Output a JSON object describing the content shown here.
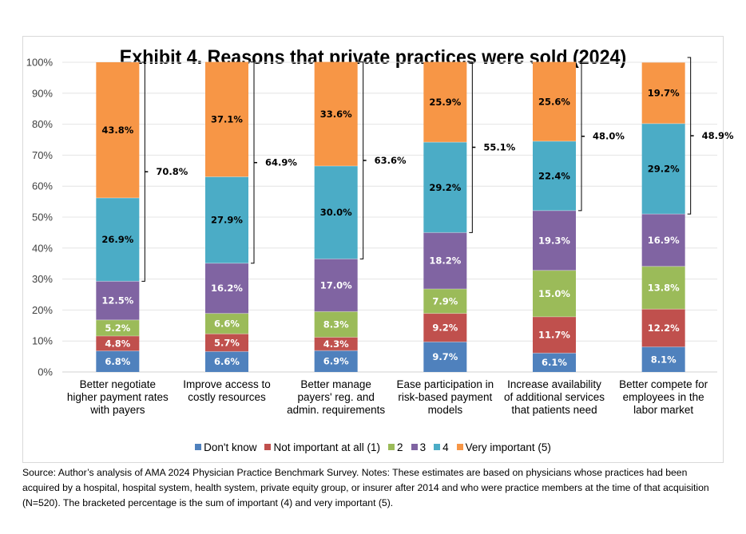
{
  "chart_data": {
    "type": "bar",
    "stacked": true,
    "title": "Exhibit 4. Reasons that private practices were sold (2024)",
    "xlabel": "",
    "ylabel": "",
    "ylim": [
      0,
      100
    ],
    "yticks": [
      "0%",
      "10%",
      "20%",
      "30%",
      "40%",
      "50%",
      "60%",
      "70%",
      "80%",
      "90%",
      "100%"
    ],
    "grid": true,
    "legend_position": "bottom",
    "categories": [
      [
        "Better negotiate",
        "higher payment rates",
        "with payers"
      ],
      [
        "Improve access to",
        "costly resources"
      ],
      [
        "Better manage",
        "payers' reg. and",
        "admin. requirements"
      ],
      [
        "Ease participation in",
        "risk-based payment",
        "models"
      ],
      [
        "Increase availability",
        "of additional services",
        "that patients need"
      ],
      [
        "Better compete for",
        "employees in the",
        "labor market"
      ]
    ],
    "series": [
      {
        "name": "Don't know",
        "color": "#4f81bd",
        "label_color": "#ffffff",
        "values": [
          6.8,
          6.6,
          6.9,
          9.7,
          6.1,
          8.1
        ]
      },
      {
        "name": "Not important at all (1)",
        "color": "#c0504d",
        "label_color": "#ffffff",
        "values": [
          4.8,
          5.7,
          4.3,
          9.2,
          11.7,
          12.2
        ]
      },
      {
        "name": "2",
        "color": "#9bbb59",
        "label_color": "#ffffff",
        "values": [
          5.2,
          6.6,
          8.3,
          7.9,
          15.0,
          13.8
        ]
      },
      {
        "name": "3",
        "color": "#8064a2",
        "label_color": "#ffffff",
        "values": [
          12.5,
          16.2,
          17.0,
          18.2,
          19.3,
          16.9
        ]
      },
      {
        "name": "4",
        "color": "#4bacc6",
        "label_color": "#000000",
        "values": [
          26.9,
          27.9,
          30.0,
          29.2,
          22.4,
          29.2
        ]
      },
      {
        "name": "Very important (5)",
        "color": "#f79646",
        "label_color": "#000000",
        "values": [
          43.8,
          37.1,
          33.6,
          25.9,
          25.6,
          19.7
        ]
      }
    ],
    "bracket_totals": [
      "70.8%",
      "64.9%",
      "63.6%",
      "55.1%",
      "48.0%",
      "48.9%"
    ],
    "bracket_note": "sum of important (4) and very important (5)"
  },
  "source_note": "Source: Author’s analysis of AMA 2024 Physician Practice Benchmark Survey. Notes: These estimates are based on physicians whose practices had been acquired by a hospital, hospital system, health system, private equity group, or insurer after 2014 and who were practice members at the time of that acquisition (N=520). The bracketed percentage is the sum of important (4) and very important (5)."
}
